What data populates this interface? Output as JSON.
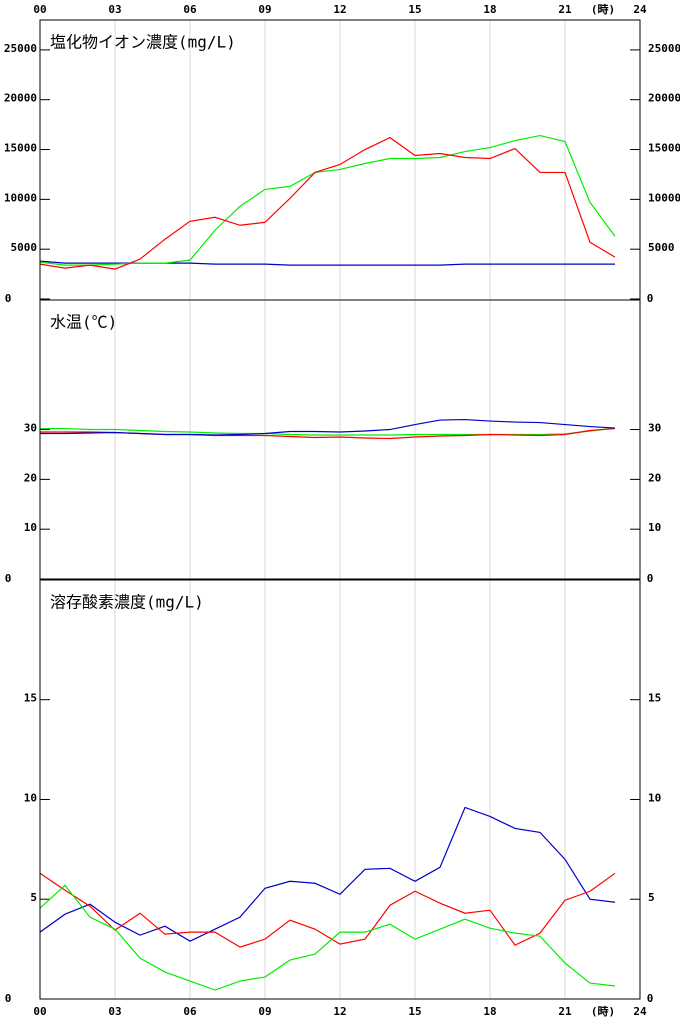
{
  "chart_data": [
    {
      "type": "line",
      "title": "塩化物イオン濃度(mg/L)",
      "xlabel": "(時)",
      "xtick_position": "top",
      "x": [
        0,
        1,
        2,
        3,
        4,
        5,
        6,
        7,
        8,
        9,
        10,
        11,
        12,
        13,
        14,
        15,
        16,
        17,
        18,
        19,
        20,
        21,
        22,
        23
      ],
      "xlim": [
        0,
        24
      ],
      "xticks": [
        {
          "value": 0,
          "label": "00"
        },
        {
          "value": 3,
          "label": "03"
        },
        {
          "value": 6,
          "label": "06"
        },
        {
          "value": 9,
          "label": "09"
        },
        12,
        15,
        18,
        21,
        24
      ],
      "ylim": [
        0,
        28000
      ],
      "yticks": [
        0,
        5000,
        10000,
        15000,
        20000,
        25000
      ],
      "grid": true,
      "series": [
        {
          "color": "#0000cc",
          "values": [
            3800,
            3600,
            3600,
            3600,
            3600,
            3600,
            3600,
            3500,
            3500,
            3500,
            3400,
            3400,
            3400,
            3400,
            3400,
            3400,
            3400,
            3500,
            3500,
            3500,
            3500,
            3500,
            3500,
            3500
          ]
        },
        {
          "color": "#00ee00",
          "values": [
            3700,
            3400,
            3400,
            3500,
            3600,
            3600,
            3900,
            6900,
            9300,
            11000,
            11300,
            12700,
            13000,
            13600,
            14100,
            14100,
            14200,
            14800,
            15200,
            15900,
            16400,
            15800,
            9700,
            6300
          ]
        },
        {
          "color": "#ff0000",
          "values": [
            3500,
            3100,
            3400,
            3000,
            4000,
            6000,
            7800,
            8200,
            7400,
            7700,
            10100,
            12700,
            13500,
            15000,
            16200,
            14400,
            14600,
            14200,
            14100,
            15100,
            12700,
            12700,
            5700,
            4200
          ]
        }
      ]
    },
    {
      "type": "line",
      "title": "水温(℃)",
      "x": [
        0,
        1,
        2,
        3,
        4,
        5,
        6,
        7,
        8,
        9,
        10,
        11,
        12,
        13,
        14,
        15,
        16,
        17,
        18,
        19,
        20,
        21,
        22,
        23
      ],
      "xlim": [
        0,
        24
      ],
      "xticks": [
        0,
        3,
        6,
        9,
        12,
        15,
        18,
        21,
        24
      ],
      "ylim": [
        0,
        56
      ],
      "yticks": [
        0,
        10,
        20,
        30
      ],
      "grid": true,
      "series": [
        {
          "color": "#00ee00",
          "values": [
            30.2,
            30.2,
            30.0,
            30.0,
            29.8,
            29.6,
            29.5,
            29.3,
            29.2,
            29.2,
            29.0,
            28.9,
            28.9,
            28.9,
            28.9,
            29.0,
            29.0,
            29.0,
            29.0,
            29.0,
            29.0,
            29.1,
            29.7,
            30.3
          ]
        },
        {
          "color": "#ff0000",
          "values": [
            29.5,
            29.5,
            29.5,
            29.4,
            29.2,
            29.0,
            29.0,
            28.8,
            28.8,
            28.8,
            28.6,
            28.4,
            28.5,
            28.3,
            28.2,
            28.5,
            28.7,
            28.8,
            29.0,
            28.9,
            28.8,
            29.0,
            29.8,
            30.2
          ]
        },
        {
          "color": "#0000cc",
          "values": [
            29.2,
            29.2,
            29.3,
            29.4,
            29.2,
            29.0,
            29.0,
            28.9,
            29.0,
            29.2,
            29.6,
            29.6,
            29.5,
            29.7,
            30.0,
            31.0,
            31.9,
            32.0,
            31.7,
            31.5,
            31.4,
            31.0,
            30.6,
            30.3
          ]
        }
      ]
    },
    {
      "type": "line",
      "title": "溶存酸素濃度(mg/L)",
      "xlabel": "(時)",
      "xtick_position": "bottom",
      "x": [
        0,
        1,
        2,
        3,
        4,
        5,
        6,
        7,
        8,
        9,
        10,
        11,
        12,
        13,
        14,
        15,
        16,
        17,
        18,
        19,
        20,
        21,
        22,
        23
      ],
      "xlim": [
        0,
        24
      ],
      "xticks": [
        {
          "value": 0,
          "label": "00"
        },
        {
          "value": 3,
          "label": "03"
        },
        {
          "value": 6,
          "label": "06"
        },
        {
          "value": 9,
          "label": "09"
        },
        12,
        15,
        18,
        21,
        24
      ],
      "ylim": [
        0,
        21
      ],
      "yticks": [
        0,
        5,
        10,
        15
      ],
      "grid": true,
      "series": [
        {
          "color": "#0000cc",
          "values": [
            3.35,
            4.25,
            4.75,
            3.85,
            3.2,
            3.65,
            2.9,
            3.5,
            4.1,
            5.55,
            5.9,
            5.8,
            5.25,
            6.5,
            6.55,
            5.9,
            6.6,
            9.6,
            9.15,
            8.55,
            8.35,
            7.0,
            5.0,
            4.85
          ]
        },
        {
          "color": "#ff0000",
          "values": [
            6.3,
            5.45,
            4.65,
            3.45,
            4.3,
            3.25,
            3.35,
            3.35,
            2.6,
            3.0,
            3.95,
            3.5,
            2.75,
            3.0,
            4.7,
            5.4,
            4.8,
            4.3,
            4.45,
            2.7,
            3.3,
            4.95,
            5.4,
            6.3
          ]
        },
        {
          "color": "#00ee00",
          "values": [
            4.55,
            5.7,
            4.1,
            3.5,
            2.05,
            1.35,
            0.9,
            0.45,
            0.9,
            1.1,
            1.95,
            2.25,
            3.35,
            3.35,
            3.75,
            3.0,
            3.5,
            4.0,
            3.55,
            3.3,
            3.15,
            1.8,
            0.8,
            0.65
          ]
        }
      ]
    }
  ]
}
